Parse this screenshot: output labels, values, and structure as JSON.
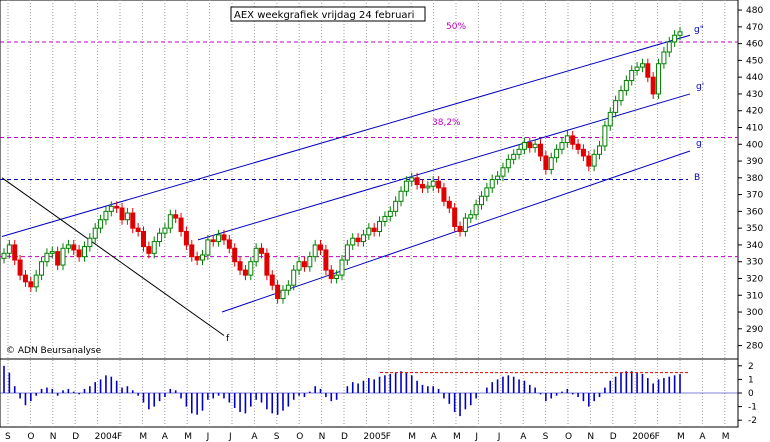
{
  "chart_data": {
    "type": "candlestick",
    "title": "AEX weekgrafiek vrijdag 24 februari",
    "copyright": "© ADN Beursanalyse",
    "y_ticks": [
      280,
      290,
      300,
      310,
      320,
      330,
      340,
      350,
      360,
      370,
      380,
      390,
      400,
      410,
      420,
      430,
      440,
      450,
      460,
      470,
      480
    ],
    "y_range": [
      272,
      486
    ],
    "osc_ticks": [
      "2",
      "1",
      "0",
      "-1",
      "-2"
    ],
    "osc_range": [
      -2.5,
      2.5
    ],
    "x_labels": [
      "S",
      "O",
      "N",
      "D",
      "2004",
      "F",
      "M",
      "A",
      "M",
      "J",
      "J",
      "A",
      "S",
      "O",
      "N",
      "D",
      "2005",
      "F",
      "M",
      "A",
      "M",
      "J",
      "J",
      "A",
      "S",
      "O",
      "N",
      "D",
      "2006",
      "F",
      "M",
      "A",
      "M"
    ],
    "horizontal_levels": [
      {
        "label": "50%",
        "value": 461,
        "color": "#c000c0"
      },
      {
        "label": "38,2%",
        "value": 404,
        "color": "#c000c0"
      },
      {
        "label": "",
        "value": 333,
        "color": "#c000c0"
      },
      {
        "label": "B",
        "value": 379,
        "color": "#0000c0"
      }
    ],
    "trend_lines": [
      {
        "label": "g\"",
        "color": "#0000c0"
      },
      {
        "label": "g'",
        "color": "#0000c0"
      },
      {
        "label": "g",
        "color": "#0000c0"
      },
      {
        "label": "f",
        "color": "#000000"
      }
    ],
    "weekly_close": [
      335,
      340,
      331,
      322,
      318,
      315,
      322,
      330,
      335,
      336,
      328,
      338,
      340,
      337,
      333,
      339,
      344,
      350,
      355,
      360,
      363,
      362,
      355,
      359,
      350,
      348,
      339,
      335,
      342,
      347,
      350,
      358,
      356,
      348,
      340,
      333,
      331,
      334,
      343,
      342,
      346,
      343,
      338,
      330,
      325,
      322,
      330,
      338,
      335,
      322,
      316,
      308,
      313,
      316,
      325,
      330,
      327,
      333,
      340,
      337,
      325,
      320,
      322,
      331,
      340,
      344,
      342,
      346,
      350,
      348,
      354,
      357,
      360,
      366,
      372,
      378,
      380,
      376,
      374,
      375,
      378,
      374,
      366,
      362,
      351,
      348,
      356,
      358,
      364,
      369,
      374,
      379,
      381,
      386,
      391,
      394,
      397,
      401,
      398,
      400,
      393,
      385,
      392,
      397,
      401,
      405,
      400,
      397,
      393,
      387,
      394,
      399,
      411,
      419,
      426,
      432,
      438,
      444,
      446,
      448,
      440,
      430,
      448,
      455,
      461,
      465,
      467
    ],
    "oscillator": [
      2.0,
      1.5,
      0.5,
      -0.4,
      -0.9,
      -0.6,
      -0.2,
      0.3,
      0.4,
      0.3,
      -0.2,
      0.2,
      0.3,
      0.1,
      -0.1,
      0.3,
      0.5,
      0.8,
      1.0,
      1.3,
      1.2,
      0.9,
      0.4,
      0.5,
      0.2,
      -0.2,
      -0.7,
      -1.2,
      -1.0,
      -0.6,
      -0.3,
      0.3,
      0.2,
      -0.4,
      -1.0,
      -1.5,
      -1.6,
      -1.3,
      -0.5,
      -0.4,
      -0.2,
      -0.4,
      -0.7,
      -1.1,
      -1.4,
      -1.5,
      -1.0,
      -0.5,
      -0.7,
      -1.2,
      -1.5,
      -1.6,
      -1.3,
      -1.0,
      -0.5,
      -0.2,
      -0.3,
      0.1,
      0.5,
      0.3,
      -0.3,
      -0.6,
      -0.5,
      0.0,
      0.5,
      0.8,
      0.7,
      0.9,
      1.1,
      1.0,
      1.2,
      1.3,
      1.4,
      1.5,
      1.6,
      1.5,
      1.3,
      0.9,
      0.6,
      0.5,
      0.5,
      0.3,
      -0.4,
      -0.8,
      -1.4,
      -1.7,
      -1.2,
      -0.9,
      -0.4,
      0.0,
      0.4,
      0.8,
      1.0,
      1.2,
      1.3,
      1.2,
      1.0,
      0.9,
      0.6,
      0.4,
      -0.1,
      -0.6,
      -0.4,
      -0.2,
      0.1,
      0.3,
      -0.1,
      -0.3,
      -0.6,
      -1.0,
      -0.6,
      -0.3,
      0.4,
      0.9,
      1.2,
      1.5,
      1.6,
      1.6,
      1.5,
      1.4,
      1.1,
      0.7,
      1.0,
      1.1,
      1.2,
      1.3,
      1.4
    ]
  }
}
